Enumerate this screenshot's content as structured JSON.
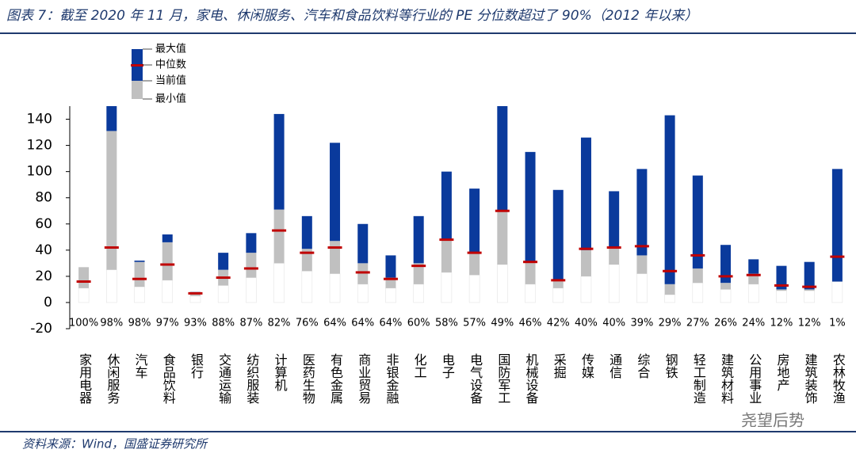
{
  "chart_data": {
    "type": "range",
    "title": "图表 7：截至 2020 年 11 月，家电、休闲服务、汽车和食品饮料等行业的 PE 分位数超过了 90%（2012 年以来）",
    "source": "资料来源：Wind，国盛证券研究所",
    "watermark": "尧望后势",
    "categories": [
      "家用电器",
      "休闲服务",
      "汽车",
      "食品饮料",
      "银行",
      "交通运输",
      "纺织服装",
      "计算机",
      "医药生物",
      "有色金属",
      "商业贸易",
      "非银金融",
      "化工",
      "电子",
      "电气设备",
      "国防军工",
      "机械设备",
      "采掘",
      "传媒",
      "通信",
      "综合",
      "钢铁",
      "轻工制造",
      "建筑材料",
      "公用事业",
      "房地产",
      "建筑装饰",
      "农林牧渔"
    ],
    "series": [
      {
        "name": "最大值",
        "color": "#0a3a9c",
        "values": [
          27,
          150,
          32,
          52,
          8,
          38,
          53,
          144,
          66,
          122,
          60,
          36,
          66,
          100,
          87,
          150,
          115,
          86,
          126,
          85,
          102,
          143,
          97,
          44,
          33,
          28,
          31,
          102
        ]
      },
      {
        "name": "中位数",
        "color": "#c00000",
        "values": [
          16,
          42,
          18,
          29,
          7,
          19,
          26,
          55,
          38,
          42,
          23,
          18,
          28,
          48,
          38,
          70,
          31,
          17,
          41,
          42,
          43,
          24,
          36,
          20,
          21,
          13,
          12,
          35
        ]
      },
      {
        "name": "当前值",
        "color": "#c0c0c0",
        "values": [
          27,
          131,
          31,
          46,
          7,
          25,
          38,
          71,
          41,
          47,
          30,
          19,
          30,
          48,
          38,
          70,
          31,
          17,
          40,
          42,
          36,
          14,
          26,
          15,
          22,
          10,
          10,
          16
        ]
      },
      {
        "name": "最小值",
        "color": "#ffffff",
        "values": [
          11,
          25,
          12,
          17,
          5,
          13,
          19,
          30,
          24,
          22,
          14,
          11,
          14,
          23,
          21,
          29,
          14,
          11,
          20,
          29,
          22,
          6,
          15,
          10,
          14,
          9,
          9,
          16
        ]
      }
    ],
    "percentile": {
      "values": [
        100,
        98,
        98,
        97,
        93,
        88,
        87,
        82,
        76,
        64,
        64,
        64,
        60,
        58,
        57,
        49,
        46,
        42,
        40,
        40,
        39,
        29,
        27,
        26,
        24,
        12,
        12,
        1
      ],
      "value_labels": [
        "100%",
        "98%",
        "98%",
        "97%",
        "93%",
        "88%",
        "87%",
        "82%",
        "76%",
        "64%",
        "64%",
        "64%",
        "60%",
        "58%",
        "57%",
        "49%",
        "46%",
        "42%",
        "40%",
        "40%",
        "39%",
        "29%",
        "27%",
        "26%",
        "24%",
        "12%",
        "12%",
        "1%"
      ]
    },
    "ylim": [
      -20,
      150
    ],
    "yticks": [
      -20,
      0,
      20,
      40,
      60,
      80,
      100,
      120,
      140
    ]
  }
}
